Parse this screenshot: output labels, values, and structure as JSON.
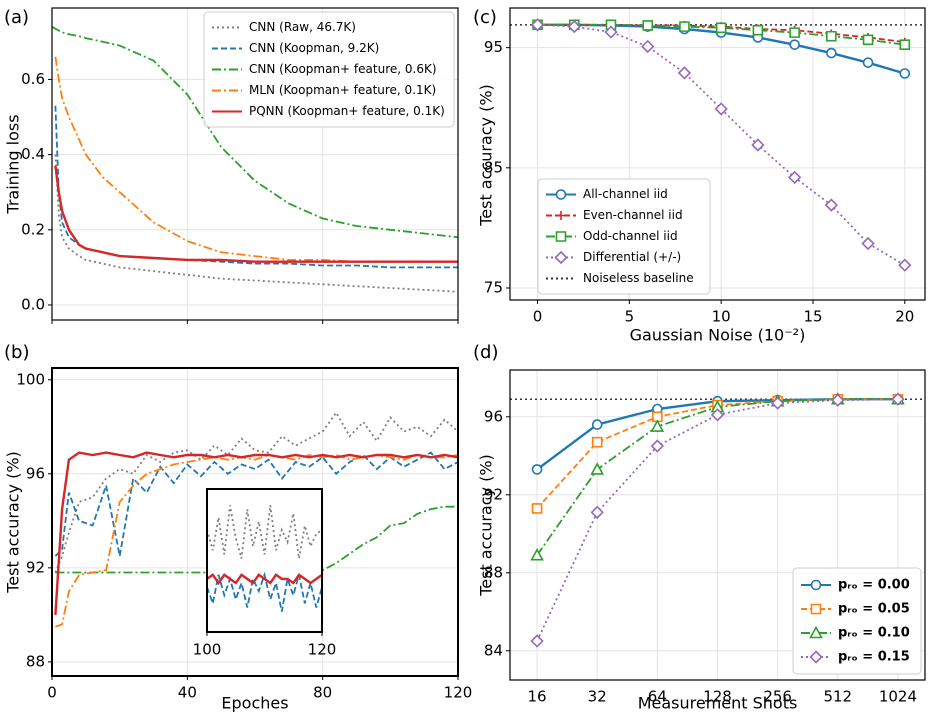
{
  "chart_data": [
    {
      "type": "line",
      "label": "(a)",
      "ylabel": "Training loss",
      "xlim": [
        0,
        120
      ],
      "ylim": [
        -0.04,
        0.79
      ],
      "yticks": [
        {
          "value": 0,
          "label": "0.0"
        },
        0.2,
        0.4,
        0.6
      ],
      "grid": true,
      "legend": "upper right",
      "x": [
        0,
        1,
        2,
        3,
        5,
        8,
        10,
        15,
        20,
        30,
        40,
        50,
        60,
        70,
        80,
        90,
        100,
        110,
        120
      ],
      "series": [
        {
          "name": "CNN (Raw, 46.7K)",
          "color": "#7f7f7f",
          "line_style": "dotted",
          "values": [
            null,
            0.4,
            0.24,
            0.18,
            0.15,
            0.13,
            0.12,
            0.11,
            0.1,
            0.09,
            0.08,
            0.07,
            0.065,
            0.06,
            0.055,
            0.05,
            0.045,
            0.04,
            0.035
          ]
        },
        {
          "name": "CNN (Koopman, 9.2K)",
          "color": "#1f77b4",
          "line_style": "dashed",
          "values": [
            null,
            0.53,
            0.3,
            0.22,
            0.18,
            0.16,
            0.15,
            0.14,
            0.13,
            0.125,
            0.12,
            0.115,
            0.11,
            0.11,
            0.105,
            0.105,
            0.1,
            0.1,
            0.1
          ]
        },
        {
          "name": "CNN (Koopman+ feature, 0.6K)",
          "color": "#2ca02c",
          "line_style": "dashdot",
          "values": [
            0.74,
            0.735,
            0.73,
            0.725,
            0.72,
            0.715,
            0.71,
            0.7,
            0.69,
            0.65,
            0.56,
            0.42,
            0.33,
            0.27,
            0.23,
            0.21,
            0.2,
            0.19,
            0.18
          ]
        },
        {
          "name": "MLN (Koopman+ feature, 0.1K)",
          "color": "#ff7f0e",
          "line_style": "dashdot",
          "values": [
            null,
            0.66,
            0.6,
            0.55,
            0.5,
            0.44,
            0.4,
            0.34,
            0.3,
            0.22,
            0.17,
            0.14,
            0.13,
            0.12,
            0.12,
            0.115,
            0.115,
            0.115,
            0.115
          ]
        },
        {
          "name": "PQNN (Koopman+ feature, 0.1K)",
          "color": "#d62728",
          "line_style": "solid",
          "values": [
            null,
            0.37,
            0.3,
            0.25,
            0.2,
            0.16,
            0.15,
            0.14,
            0.13,
            0.125,
            0.12,
            0.12,
            0.115,
            0.115,
            0.115,
            0.115,
            0.115,
            0.115,
            0.115
          ]
        }
      ]
    },
    {
      "type": "line",
      "label": "(b)",
      "xlabel": "Epoches",
      "ylabel": "Test accuracy (%)",
      "xlim": [
        0,
        120
      ],
      "xticks": [
        0,
        40,
        80,
        120
      ],
      "ylim": [
        87.4,
        100.5
      ],
      "yticks": [
        88,
        92,
        96,
        100
      ],
      "grid": true,
      "x": [
        1,
        3,
        5,
        8,
        12,
        16,
        20,
        24,
        28,
        32,
        36,
        40,
        44,
        48,
        52,
        56,
        60,
        64,
        68,
        72,
        76,
        80,
        84,
        88,
        92,
        96,
        100,
        104,
        108,
        112,
        116,
        120
      ],
      "series": [
        {
          "color": "#7f7f7f",
          "line_style": "dotted",
          "values": [
            91.8,
            92.5,
            93.5,
            94.8,
            95.0,
            95.8,
            96.2,
            96.0,
            96.8,
            96.5,
            96.9,
            97.0,
            96.6,
            97.2,
            96.8,
            97.5,
            97.0,
            96.9,
            97.6,
            97.2,
            97.5,
            97.8,
            98.6,
            97.6,
            98.2,
            97.4,
            98.4,
            97.8,
            98.0,
            97.6,
            98.3,
            97.8
          ]
        },
        {
          "color": "#1f77b4",
          "line_style": "dashed",
          "values": [
            92.5,
            92.8,
            95.2,
            94.0,
            93.8,
            95.5,
            92.5,
            95.8,
            95.2,
            96.3,
            95.6,
            96.4,
            95.9,
            96.5,
            96.0,
            96.4,
            96.2,
            96.6,
            95.8,
            96.5,
            96.3,
            96.7,
            96.0,
            96.5,
            96.8,
            96.2,
            96.7,
            96.3,
            96.6,
            96.9,
            96.2,
            96.5
          ]
        },
        {
          "color": "#2ca02c",
          "line_style": "dashdot",
          "values": [
            91.8,
            91.8,
            91.8,
            91.8,
            91.8,
            91.8,
            91.8,
            91.8,
            91.8,
            91.8,
            91.8,
            91.8,
            91.8,
            91.8,
            91.8,
            91.8,
            91.8,
            91.8,
            91.8,
            91.8,
            91.85,
            91.9,
            92.2,
            92.6,
            93.0,
            93.3,
            93.8,
            93.9,
            94.3,
            94.5,
            94.6,
            94.6
          ]
        },
        {
          "color": "#ff7f0e",
          "line_style": "dashdot",
          "values": [
            89.5,
            89.6,
            91.0,
            91.7,
            91.8,
            91.9,
            94.8,
            95.5,
            96.0,
            96.2,
            96.4,
            96.5,
            96.6,
            96.7,
            96.6,
            96.7,
            96.6,
            96.8,
            96.7,
            96.6,
            96.8,
            96.7,
            96.8,
            96.6,
            96.7,
            96.8,
            96.7,
            96.6,
            96.8,
            96.7,
            96.7,
            96.8
          ]
        },
        {
          "color": "#d62728",
          "line_style": "solid",
          "values": [
            90.0,
            94.5,
            96.6,
            96.9,
            96.8,
            96.9,
            96.8,
            96.7,
            96.9,
            96.8,
            96.7,
            96.8,
            96.8,
            96.7,
            96.8,
            96.7,
            96.8,
            96.8,
            96.7,
            96.8,
            96.7,
            96.8,
            96.7,
            96.8,
            96.7,
            96.8,
            96.8,
            96.7,
            96.8,
            96.7,
            96.8,
            96.7
          ]
        }
      ],
      "inset": {
        "xlim": [
          100,
          120
        ],
        "xticks": [
          100,
          120
        ],
        "ylim": [
          95.5,
          99
        ],
        "x": [
          100,
          101,
          102,
          103,
          104,
          105,
          106,
          107,
          108,
          109,
          110,
          111,
          112,
          113,
          114,
          115,
          116,
          117,
          118,
          119,
          120
        ],
        "series": [
          {
            "color": "#7f7f7f",
            "line_style": "dotted",
            "values": [
              98.0,
              97.5,
              98.3,
              97.4,
              98.6,
              97.8,
              97.3,
              98.5,
              97.6,
              98.2,
              97.4,
              98.6,
              97.5,
              98.0,
              97.7,
              98.4,
              97.3,
              98.1,
              97.6,
              97.9,
              98.0
            ]
          },
          {
            "color": "#1f77b4",
            "line_style": "dashed",
            "values": [
              96.6,
              96.2,
              96.9,
              96.4,
              96.8,
              96.3,
              96.7,
              96.1,
              96.8,
              96.5,
              96.9,
              96.3,
              96.7,
              96.0,
              96.8,
              96.4,
              96.9,
              96.2,
              96.7,
              96.1,
              96.6
            ]
          },
          {
            "color": "#d62728",
            "line_style": "solid",
            "values": [
              96.8,
              96.9,
              96.7,
              96.9,
              96.8,
              96.7,
              96.9,
              96.8,
              96.7,
              96.9,
              96.8,
              96.7,
              96.9,
              96.8,
              96.8,
              96.7,
              96.9,
              96.8,
              96.7,
              96.8,
              96.9
            ]
          }
        ]
      }
    },
    {
      "type": "line",
      "label": "(c)",
      "xlabel": "Gaussian Noise (10⁻²)",
      "ylabel": "Test accuracy (%)",
      "xlim": [
        -1.5,
        21.1
      ],
      "xticks": [
        0,
        5,
        10,
        15,
        20
      ],
      "ylim": [
        74,
        98.3
      ],
      "yticks": [
        75,
        85,
        95
      ],
      "grid": true,
      "legend": "lower left",
      "x": [
        0,
        2,
        4,
        6,
        8,
        10,
        12,
        14,
        16,
        18,
        20
      ],
      "series": [
        {
          "name": "All-channel iid",
          "color": "#1f77b4",
          "line_style": "solid",
          "marker": "circle",
          "values": [
            96.9,
            96.9,
            96.85,
            96.75,
            96.55,
            96.25,
            95.85,
            95.25,
            94.55,
            93.75,
            92.85
          ]
        },
        {
          "name": "Even-channel iid",
          "color": "#d62728",
          "line_style": "dashed",
          "marker": "plus",
          "values": [
            96.9,
            96.9,
            96.9,
            96.85,
            96.85,
            96.75,
            96.55,
            96.45,
            96.15,
            95.85,
            95.45
          ]
        },
        {
          "name": "Odd-channel iid",
          "color": "#2ca02c",
          "line_style": "dashdot",
          "marker": "square",
          "values": [
            96.9,
            96.9,
            96.9,
            96.85,
            96.75,
            96.65,
            96.45,
            96.25,
            95.95,
            95.65,
            95.25
          ]
        },
        {
          "name": "Differential (+/-)",
          "color": "#9467bd",
          "line_style": "dotted",
          "marker": "diamond",
          "values": [
            96.9,
            96.75,
            96.3,
            95.1,
            92.9,
            89.9,
            86.9,
            84.2,
            81.9,
            78.7,
            76.9
          ]
        }
      ],
      "baseline": {
        "name": "Noiseless baseline",
        "value": 96.9
      }
    },
    {
      "type": "line",
      "label": "(d)",
      "xlabel": "Measurement Shots",
      "ylabel": "Test accuracy (%)",
      "categories": [
        "16",
        "32",
        "64",
        "128",
        "256",
        "512",
        "1024"
      ],
      "ylim": [
        82.5,
        98.4
      ],
      "yticks": [
        84,
        88,
        92,
        96
      ],
      "grid": true,
      "legend": "lower right",
      "series": [
        {
          "name": "pᵣₒ = 0.00",
          "color": "#1f77b4",
          "line_style": "solid",
          "marker": "circle",
          "values": [
            93.3,
            95.6,
            96.4,
            96.8,
            96.85,
            96.9,
            96.9
          ]
        },
        {
          "name": "pᵣₒ = 0.05",
          "color": "#ff7f0e",
          "line_style": "dashed",
          "marker": "square",
          "values": [
            91.3,
            94.7,
            96.0,
            96.6,
            96.8,
            96.9,
            96.9
          ]
        },
        {
          "name": "pᵣₒ = 0.10",
          "color": "#2ca02c",
          "line_style": "dashdot",
          "marker": "triangle",
          "values": [
            88.9,
            93.3,
            95.5,
            96.5,
            96.8,
            96.9,
            96.9
          ]
        },
        {
          "name": "pᵣₒ = 0.15",
          "color": "#9467bd",
          "line_style": "dotted",
          "marker": "diamond",
          "values": [
            84.5,
            91.1,
            94.5,
            96.1,
            96.7,
            96.85,
            96.9
          ]
        }
      ],
      "baseline": {
        "value": 96.9
      }
    }
  ]
}
